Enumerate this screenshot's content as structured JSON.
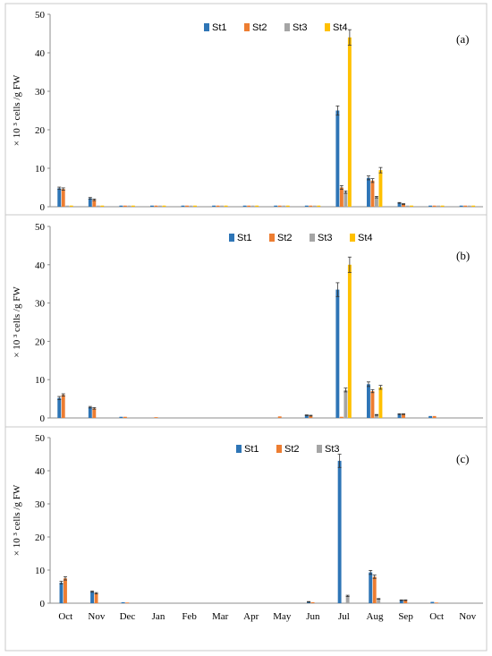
{
  "chart_data": [
    {
      "type": "bar",
      "panel_label": "(a)",
      "ylabel": "× 10 ³ cells /g FW",
      "ylim": [
        0,
        50
      ],
      "yticks": [
        0,
        10,
        20,
        30,
        40,
        50
      ],
      "categories": [
        "Oct",
        "Nov",
        "Dec",
        "Jan",
        "Feb",
        "Mar",
        "Apr",
        "May",
        "Jun",
        "Jul",
        "Aug",
        "Sep",
        "Oct",
        "Nov"
      ],
      "show_xtick_labels": false,
      "legend_position": "top-center",
      "series": [
        {
          "name": "St1",
          "color": "#2e75b6",
          "values": [
            4.8,
            2.2,
            0.3,
            0.3,
            0.3,
            0.3,
            0.3,
            0.3,
            0.3,
            25,
            7.5,
            1,
            0.3,
            0.3
          ],
          "errors": [
            0.3,
            0.2,
            0,
            0,
            0,
            0,
            0,
            0,
            0,
            1.2,
            0.5,
            0.1,
            0,
            0
          ]
        },
        {
          "name": "St2",
          "color": "#ed7d31",
          "values": [
            4.6,
            1.8,
            0.3,
            0.3,
            0.3,
            0.3,
            0.3,
            0.3,
            0.3,
            5,
            6.8,
            0.7,
            0.3,
            0.3
          ],
          "errors": [
            0.3,
            0.2,
            0,
            0,
            0,
            0,
            0,
            0,
            0,
            0.5,
            0.5,
            0.1,
            0,
            0
          ]
        },
        {
          "name": "St3",
          "color": "#a5a5a5",
          "values": [
            0.3,
            0.3,
            0.3,
            0.3,
            0.3,
            0.3,
            0.3,
            0.3,
            0.3,
            3.8,
            2.5,
            0.3,
            0.3,
            0.3
          ],
          "errors": [
            0,
            0,
            0,
            0,
            0,
            0,
            0,
            0,
            0,
            0.3,
            0.2,
            0,
            0,
            0
          ]
        },
        {
          "name": "St4",
          "color": "#ffc000",
          "values": [
            0.3,
            0.3,
            0.3,
            0.3,
            0.3,
            0.3,
            0.3,
            0.3,
            0.3,
            44,
            9.5,
            0.3,
            0.3,
            0.3
          ],
          "errors": [
            0,
            0,
            0,
            0,
            0,
            0,
            0,
            0,
            0,
            2,
            0.7,
            0,
            0,
            0
          ]
        }
      ]
    },
    {
      "type": "bar",
      "panel_label": "(b)",
      "ylabel": "× 10 ³ cells /g FW",
      "ylim": [
        0,
        50
      ],
      "yticks": [
        0,
        10,
        20,
        30,
        40,
        50
      ],
      "categories": [
        "Oct",
        "Nov",
        "Dec",
        "Jan",
        "Feb",
        "Mar",
        "Apr",
        "May",
        "Jun",
        "Jul",
        "Aug",
        "Sep",
        "Oct",
        "Nov"
      ],
      "show_xtick_labels": false,
      "legend_position": "top-center",
      "series": [
        {
          "name": "St1",
          "color": "#2e75b6",
          "values": [
            5.2,
            2.8,
            0.3,
            0,
            0,
            0,
            0,
            0,
            0.7,
            33.5,
            8.8,
            1,
            0.5,
            0
          ],
          "errors": [
            0.4,
            0.2,
            0,
            0,
            0,
            0,
            0,
            0,
            0.1,
            1.8,
            0.6,
            0.1,
            0,
            0
          ]
        },
        {
          "name": "St2",
          "color": "#ed7d31",
          "values": [
            6,
            2.5,
            0.3,
            0.2,
            0,
            0,
            0,
            0.4,
            0.6,
            0.3,
            7,
            1,
            0.5,
            0
          ],
          "errors": [
            0.3,
            0.2,
            0,
            0,
            0,
            0,
            0,
            0,
            0.1,
            0,
            0.4,
            0.1,
            0,
            0
          ]
        },
        {
          "name": "St3",
          "color": "#a5a5a5",
          "values": [
            0,
            0,
            0,
            0,
            0,
            0,
            0,
            0,
            0,
            7.3,
            0.8,
            0,
            0,
            0
          ],
          "errors": [
            0,
            0,
            0,
            0,
            0,
            0,
            0,
            0,
            0,
            0.5,
            0.1,
            0,
            0,
            0
          ]
        },
        {
          "name": "St4",
          "color": "#ffc000",
          "values": [
            0,
            0,
            0,
            0,
            0,
            0,
            0,
            0,
            0,
            40,
            8,
            0,
            0,
            0
          ],
          "errors": [
            0,
            0,
            0,
            0,
            0,
            0,
            0,
            0,
            0,
            2,
            0.5,
            0,
            0,
            0
          ]
        }
      ]
    },
    {
      "type": "bar",
      "panel_label": "(c)",
      "ylabel": "× 10 ³ cells /g FW",
      "ylim": [
        0,
        50
      ],
      "yticks": [
        0,
        10,
        20,
        30,
        40,
        50
      ],
      "categories": [
        "Oct",
        "Nov",
        "Dec",
        "Jan",
        "Feb",
        "Mar",
        "Apr",
        "May",
        "Jun",
        "Jul",
        "Aug",
        "Sep",
        "Oct",
        "Nov"
      ],
      "show_xtick_labels": true,
      "legend_position": "top-center",
      "series": [
        {
          "name": "St1",
          "color": "#2e75b6",
          "values": [
            6.2,
            3.5,
            0.3,
            0,
            0,
            0,
            0,
            0,
            0.4,
            43,
            9.3,
            0.9,
            0.4,
            0
          ],
          "errors": [
            0.4,
            0.2,
            0,
            0,
            0,
            0,
            0,
            0,
            0.1,
            2,
            0.6,
            0.1,
            0,
            0
          ]
        },
        {
          "name": "St2",
          "color": "#ed7d31",
          "values": [
            7.5,
            3,
            0.2,
            0,
            0,
            0,
            0,
            0,
            0.3,
            0,
            8,
            0.9,
            0.2,
            0
          ],
          "errors": [
            0.5,
            0.2,
            0,
            0,
            0,
            0,
            0,
            0,
            0,
            0,
            0.5,
            0.1,
            0,
            0
          ]
        },
        {
          "name": "St3",
          "color": "#a5a5a5",
          "values": [
            0,
            0,
            0,
            0,
            0,
            0,
            0,
            0,
            0,
            2.2,
            1.3,
            0,
            0,
            0
          ],
          "errors": [
            0,
            0,
            0,
            0,
            0,
            0,
            0,
            0,
            0,
            0.2,
            0.1,
            0,
            0,
            0
          ]
        }
      ]
    }
  ]
}
